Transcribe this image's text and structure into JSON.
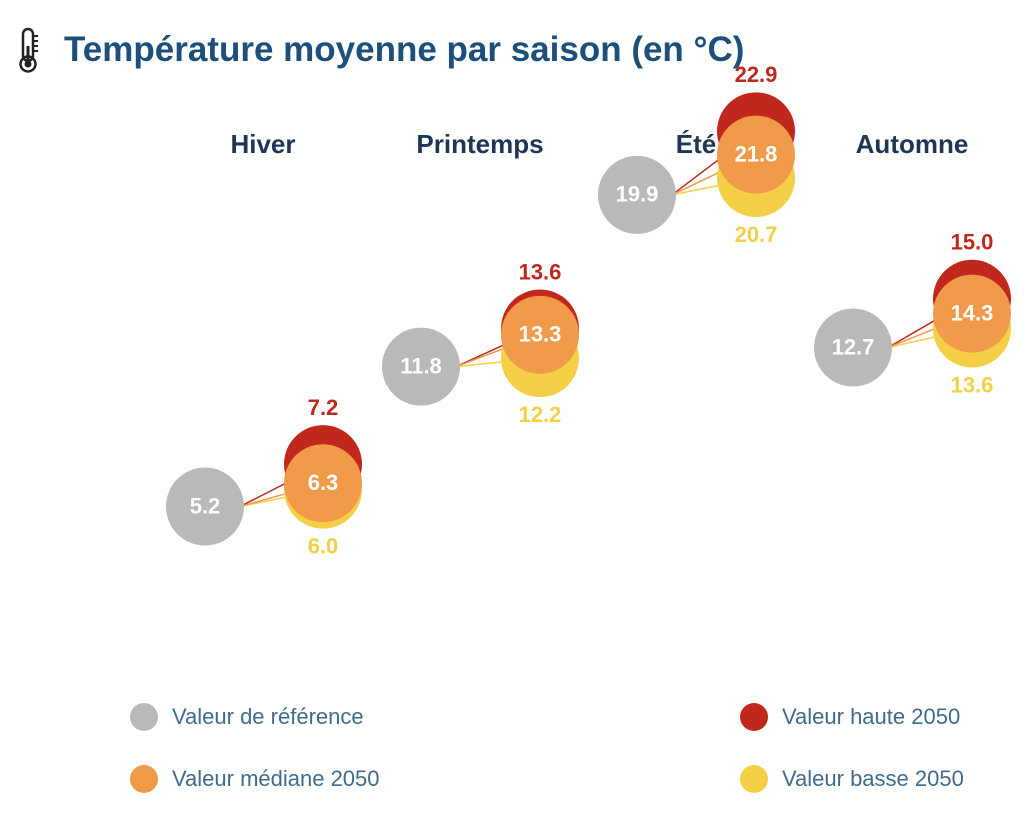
{
  "title": "Température moyenne par saison (en °C)",
  "colors": {
    "reference": "#b9b9b9",
    "mediane": "#f09a4a",
    "haute": "#c0281d",
    "basse": "#f5cf45",
    "title": "#1d4f7c",
    "season": "#1d3557"
  },
  "legend": {
    "reference": "Valeur de référence",
    "mediane": "Valeur médiane 2050",
    "haute": "Valeur haute 2050",
    "basse": "Valeur basse 2050"
  },
  "chart_data": {
    "type": "scatter",
    "title": "Température moyenne par saison (en °C)",
    "categories": [
      "Hiver",
      "Printemps",
      "Été",
      "Automne"
    ],
    "series": [
      {
        "name": "Valeur de référence",
        "values": [
          5.2,
          11.8,
          19.9,
          12.7
        ]
      },
      {
        "name": "Valeur médiane 2050",
        "values": [
          6.3,
          13.3,
          21.8,
          14.3
        ]
      },
      {
        "name": "Valeur haute 2050",
        "values": [
          7.2,
          13.6,
          22.9,
          15.0
        ]
      },
      {
        "name": "Valeur basse 2050",
        "values": [
          6.0,
          12.2,
          20.7,
          13.6
        ]
      }
    ],
    "legend_position": "bottom"
  }
}
